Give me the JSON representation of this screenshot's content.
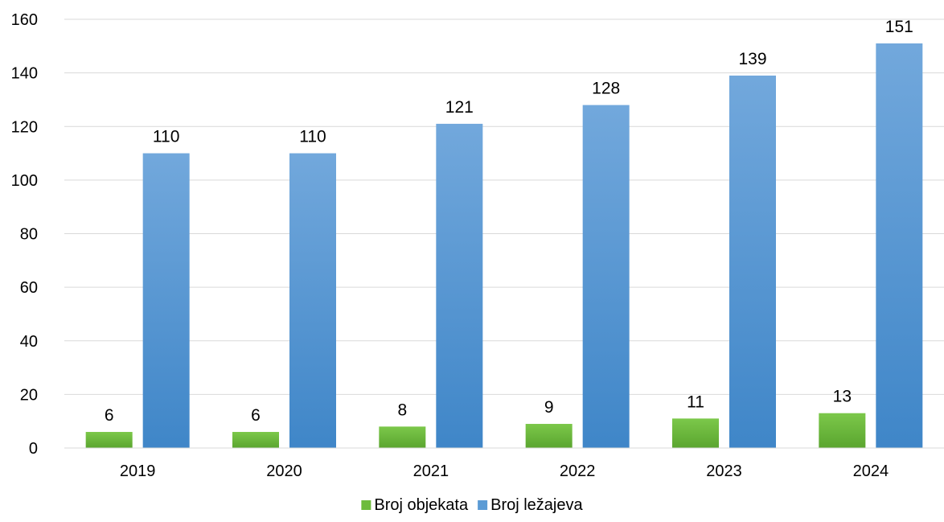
{
  "chart_data": {
    "type": "bar",
    "title": "",
    "xlabel": "",
    "ylabel": "",
    "categories": [
      "2019",
      "2020",
      "2021",
      "2022",
      "2023",
      "2024"
    ],
    "series": [
      {
        "name": "Broj objekata",
        "values": [
          6,
          6,
          8,
          9,
          11,
          13
        ],
        "color": "#6dbb3c"
      },
      {
        "name": "Broj ležajeva",
        "values": [
          110,
          110,
          121,
          128,
          139,
          151
        ],
        "color": "#5b9bd5"
      }
    ],
    "ylim": [
      0,
      160
    ],
    "yticks": [
      "0",
      "20",
      "40",
      "60",
      "80",
      "100",
      "120",
      "140",
      "160"
    ],
    "grid": true,
    "legend": "bottom-center"
  }
}
